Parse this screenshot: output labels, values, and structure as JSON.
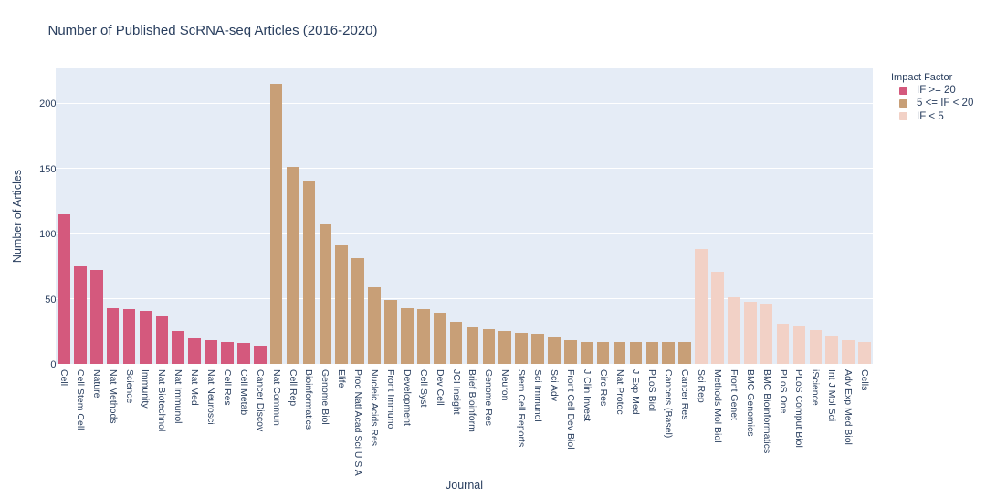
{
  "title": "Number of Published ScRNA-seq Articles (2016-2020)",
  "colors": {
    "paper_background": "#ffffff",
    "plot_background": "#e5ecf6",
    "gridline": "#ffffff",
    "font": "#2a3f5f",
    "if_ge_20": "#d4597d",
    "if_5_to_20": "#c89f77",
    "if_lt_5": "#f2d1c6"
  },
  "legend": {
    "title": "Impact Factor",
    "items": [
      {
        "label": "IF >= 20",
        "color": "#d4597d"
      },
      {
        "label": "5 <= IF < 20",
        "color": "#c89f77"
      },
      {
        "label": "IF < 5",
        "color": "#f2d1c6"
      }
    ]
  },
  "chart_data": {
    "type": "bar",
    "title": "Number of Published ScRNA-seq Articles (2016-2020)",
    "xlabel": "Journal",
    "ylabel": "Number of Articles",
    "ylim": [
      0,
      226.7
    ],
    "yticks": [
      0,
      50,
      100,
      150,
      200
    ],
    "grid": true,
    "legend_position": "right",
    "legend_title": "Impact Factor",
    "categories": [
      "Cell",
      "Cell Stem Cell",
      "Nature",
      "Nat Methods",
      "Science",
      "Immunity",
      "Nat Biotechnol",
      "Nat Immunol",
      "Nat Med",
      "Nat Neurosci",
      "Cell Res",
      "Cell Metab",
      "Cancer Discov",
      "Nat Commun",
      "Cell Rep",
      "Bioinformatics",
      "Genome Biol",
      "Elife",
      "Proc Natl Acad Sci U S A",
      "Nucleic Acids Res",
      "Front Immunol",
      "Development",
      "Cell Syst",
      "Dev Cell",
      "JCI Insight",
      "Brief Bioinform",
      "Genome Res",
      "Neuron",
      "Stem Cell Reports",
      "Sci Immunol",
      "Sci Adv",
      "Front Cell Dev Biol",
      "J Clin Invest",
      "Circ Res",
      "Nat Protoc",
      "J Exp Med",
      "PLoS Biol",
      "Cancers (Basel)",
      "Cancer Res",
      "Sci Rep",
      "Methods Mol Biol",
      "Front Genet",
      "BMC Genomics",
      "BMC Bioinformatics",
      "PLoS One",
      "PLoS Comput Biol",
      "iScience",
      "Int J Mol Sci",
      "Adv Exp Med Biol",
      "Cells"
    ],
    "values": [
      115,
      75,
      72,
      43,
      42,
      41,
      37,
      25,
      20,
      18,
      17,
      16,
      14,
      215,
      151,
      141,
      107,
      91,
      81,
      59,
      49,
      43,
      42,
      39,
      32,
      28,
      27,
      25,
      24,
      23,
      21,
      18,
      17,
      17,
      17,
      17,
      17,
      17,
      17,
      88,
      71,
      51,
      48,
      46,
      31,
      29,
      26,
      22,
      18,
      17
    ],
    "series": [
      {
        "name": "IF >= 20",
        "color": "#d4597d",
        "categories": [
          "Cell",
          "Cell Stem Cell",
          "Nature",
          "Nat Methods",
          "Science",
          "Immunity",
          "Nat Biotechnol",
          "Nat Immunol",
          "Nat Med",
          "Nat Neurosci",
          "Cell Res",
          "Cell Metab",
          "Cancer Discov"
        ],
        "values": [
          115,
          75,
          72,
          43,
          42,
          41,
          37,
          25,
          20,
          18,
          17,
          16,
          14
        ]
      },
      {
        "name": "5 <= IF < 20",
        "color": "#c89f77",
        "categories": [
          "Nat Commun",
          "Cell Rep",
          "Bioinformatics",
          "Genome Biol",
          "Elife",
          "Proc Natl Acad Sci U S A",
          "Nucleic Acids Res",
          "Front Immunol",
          "Development",
          "Cell Syst",
          "Dev Cell",
          "JCI Insight",
          "Brief Bioinform",
          "Genome Res",
          "Neuron",
          "Stem Cell Reports",
          "Sci Immunol",
          "Sci Adv",
          "Front Cell Dev Biol",
          "J Clin Invest",
          "Circ Res",
          "Nat Protoc",
          "J Exp Med",
          "PLoS Biol",
          "Cancers (Basel)",
          "Cancer Res"
        ],
        "values": [
          215,
          151,
          141,
          107,
          91,
          81,
          59,
          49,
          43,
          42,
          39,
          32,
          28,
          27,
          25,
          24,
          23,
          21,
          18,
          17,
          17,
          17,
          17,
          17,
          17,
          17
        ]
      },
      {
        "name": "IF < 5",
        "color": "#f2d1c6",
        "categories": [
          "Sci Rep",
          "Methods Mol Biol",
          "Front Genet",
          "BMC Genomics",
          "BMC Bioinformatics",
          "PLoS One",
          "PLoS Comput Biol",
          "iScience",
          "Int J Mol Sci",
          "Adv Exp Med Biol",
          "Cells"
        ],
        "values": [
          88,
          71,
          51,
          48,
          46,
          31,
          29,
          26,
          22,
          18,
          17
        ]
      }
    ]
  }
}
